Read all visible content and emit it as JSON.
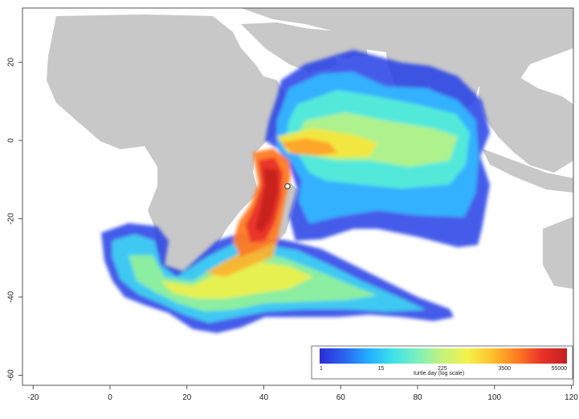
{
  "map": {
    "colors": {
      "land": "#c8c8c8",
      "ocean": "#ffffff",
      "frame": "#555555",
      "release_point_fill": "#ffffff",
      "release_point_stroke": "#333333"
    },
    "x_axis": {
      "ticks": [
        -20,
        0,
        20,
        40,
        60,
        80,
        100,
        120
      ],
      "labels": [
        "-20",
        "0",
        "20",
        "40",
        "60",
        "80",
        "100",
        "120"
      ]
    },
    "y_axis": {
      "ticks": [
        20,
        0,
        -20,
        -40,
        -60
      ],
      "labels": [
        "20",
        "0",
        "-20",
        "-40",
        "-60"
      ]
    },
    "colorbar": {
      "scale": "log",
      "gradient": [
        "#2b2bd6",
        "#2a64f0",
        "#22b0ff",
        "#3fe3e8",
        "#7ef0b8",
        "#c8f27a",
        "#f4f24a",
        "#ffbf2c",
        "#ff7a20",
        "#e8322a",
        "#c41e1e"
      ],
      "tick_values": [
        1,
        15,
        225,
        3500,
        55000
      ],
      "tick_labels": [
        "1",
        "15",
        "225",
        "3500",
        "55000"
      ],
      "label": "turtle.day (log scale)"
    }
  }
}
